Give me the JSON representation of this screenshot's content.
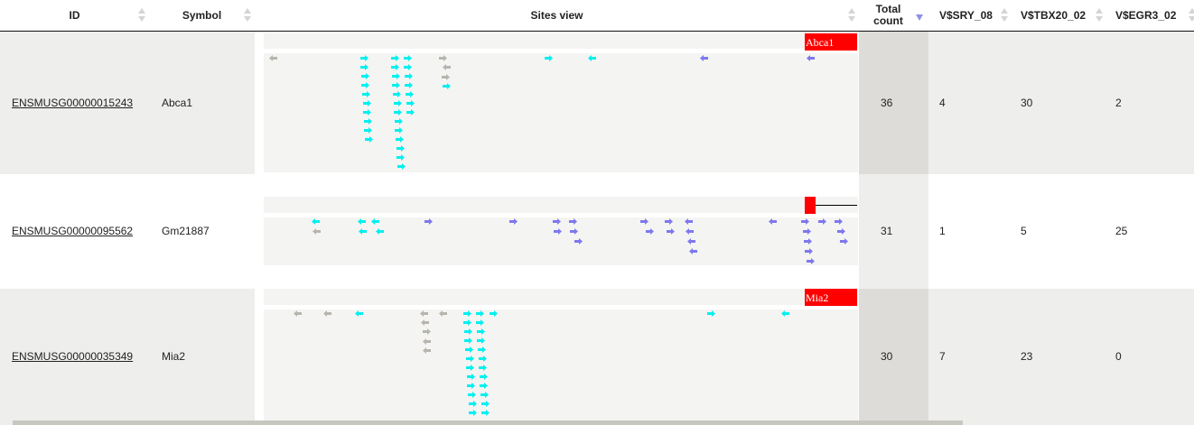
{
  "table": {
    "columns": [
      {
        "key": "id",
        "label": "ID"
      },
      {
        "key": "symbol",
        "label": "Symbol"
      },
      {
        "key": "sites",
        "label": "Sites view"
      },
      {
        "key": "total",
        "label": "Total count"
      },
      {
        "key": "sry",
        "label": "V$SRY_08"
      },
      {
        "key": "tbx",
        "label": "V$TBX20_02"
      },
      {
        "key": "egr",
        "label": "V$EGR3_02"
      }
    ],
    "rows": [
      {
        "id": "ENSMUSG00000015243",
        "symbol": "Abca1",
        "gene_label": "Abca1",
        "total": "36",
        "sry": "4",
        "tbx": "30",
        "egr": "2"
      },
      {
        "id": "ENSMUSG00000095562",
        "symbol": "Gm21887",
        "gene_label": "",
        "total": "31",
        "sry": "1",
        "tbx": "5",
        "egr": "25"
      },
      {
        "id": "ENSMUSG00000035349",
        "symbol": "Mia2",
        "gene_label": "Mia2",
        "total": "30",
        "sry": "7",
        "tbx": "23",
        "egr": "0"
      }
    ]
  },
  "colors": {
    "sry": "#b8b4ae",
    "tbx": "#00f0f0",
    "egr": "#7d78ee",
    "gene": "#ff0000",
    "sort_active": "#9090e8"
  }
}
